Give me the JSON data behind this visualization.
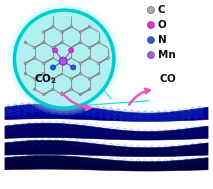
{
  "legend_items": [
    {
      "label": "C",
      "color": "#aaaaaa"
    },
    {
      "label": "O",
      "color": "#dd33cc"
    },
    {
      "label": "N",
      "color": "#3355dd"
    },
    {
      "label": "Mn",
      "color": "#aa55dd"
    }
  ],
  "label_color": "#111111",
  "circle_fill": "#b0f0f0",
  "circle_edge": "#00cccc",
  "arrow_color": "#ee55bb",
  "zoom_line_color": "#00dddd",
  "bg_color": "#ffffff",
  "sheet_colors": [
    "#00004a",
    "#000066",
    "#000088",
    "#1100aa"
  ],
  "sheet_top_color": "#0000cc",
  "hex_line_color": "#2244bb",
  "bond_color": "#888888",
  "atom_c_color": "#aaaaaa",
  "atom_o_color": "#dd33cc",
  "atom_n_color": "#3355dd",
  "atom_mn_color": "#aa55dd"
}
